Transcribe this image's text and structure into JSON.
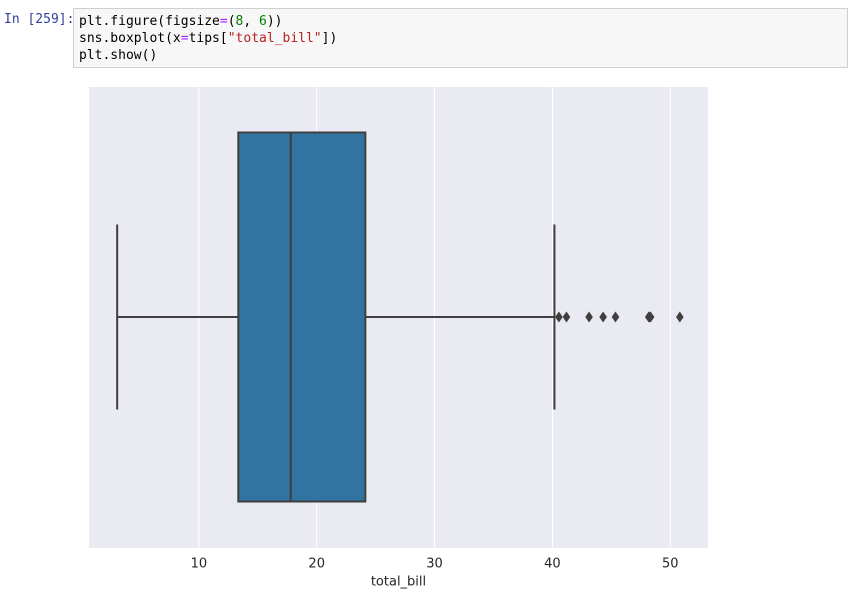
{
  "cell": {
    "prompt": "In [259]:",
    "code": [
      [
        {
          "text": "plt.figure(figsize",
          "color": "#000000"
        },
        {
          "text": "=",
          "color": "#AA22FF"
        },
        {
          "text": "(",
          "color": "#000000"
        },
        {
          "text": "8",
          "color": "#008000"
        },
        {
          "text": ", ",
          "color": "#000000"
        },
        {
          "text": "6",
          "color": "#008000"
        },
        {
          "text": "))",
          "color": "#000000"
        }
      ],
      [
        {
          "text": "sns.boxplot(x",
          "color": "#000000"
        },
        {
          "text": "=",
          "color": "#AA22FF"
        },
        {
          "text": "tips[",
          "color": "#000000"
        },
        {
          "text": "\"total_bill\"",
          "color": "#BA2121"
        },
        {
          "text": "])",
          "color": "#000000"
        }
      ],
      [
        {
          "text": "plt.show()",
          "color": "#000000"
        }
      ]
    ]
  },
  "chart_data": {
    "type": "box",
    "xlabel": "total_bill",
    "whislo": 3.07,
    "q1": 13.35,
    "med": 17.795,
    "q3": 24.1275,
    "whishi": 40.17,
    "fliers": [
      40.55,
      41.19,
      43.11,
      44.3,
      45.35,
      48.17,
      48.27,
      48.33,
      50.81
    ],
    "xlim": [
      0.68,
      53.2
    ],
    "xticks": [
      10,
      20,
      30,
      40,
      50
    ],
    "grid": true,
    "color": "#3274a1",
    "line_color": "#3f3f3f",
    "background": "#eaeaf2"
  }
}
